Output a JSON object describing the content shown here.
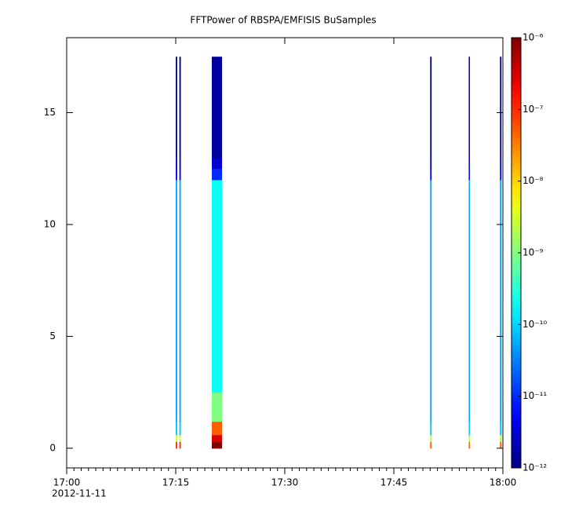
{
  "chart_data": {
    "type": "spectrogram",
    "title": "FFTPower of RBSPA/EMFISIS  BuSamples",
    "date_label": "2012-11-11",
    "xlim": [
      0,
      60
    ],
    "xticks": [
      {
        "value": 0,
        "label": "17:00"
      },
      {
        "value": 15,
        "label": "17:15"
      },
      {
        "value": 30,
        "label": "17:30"
      },
      {
        "value": 45,
        "label": "17:45"
      },
      {
        "value": 60,
        "label": "18:00"
      }
    ],
    "ylim": [
      -0.88,
      18.35
    ],
    "yticks": [
      0,
      5,
      10,
      15
    ],
    "clim": [
      1e-12,
      1e-06
    ],
    "cticks": [
      {
        "value": 1e-06,
        "label": "10⁻⁶"
      },
      {
        "value": 1e-07,
        "label": "10⁻⁷"
      },
      {
        "value": 1e-08,
        "label": "10⁻⁸"
      },
      {
        "value": 1e-09,
        "label": "10⁻⁹"
      },
      {
        "value": 1e-10,
        "label": "10⁻¹⁰"
      },
      {
        "value": 1e-11,
        "label": "10⁻¹¹"
      },
      {
        "value": 1e-12,
        "label": "10⁻¹²"
      }
    ],
    "clog": true,
    "bins": [
      0,
      0.3,
      0.6,
      1.2,
      2.5,
      12,
      12.5,
      13,
      17.5
    ],
    "columns": [
      {
        "x0": 15.0,
        "x1": 15.2,
        "values": [
          1e-07,
          3e-09,
          8e-11,
          5e-11,
          5e-11,
          5e-12,
          2e-12,
          1e-12
        ]
      },
      {
        "x0": 15.5,
        "x1": 15.7,
        "values": [
          1e-07,
          3e-09,
          8e-11,
          5e-11,
          5e-11,
          5e-12,
          2e-12,
          1e-12
        ]
      },
      {
        "x0": 19.96,
        "x1": 21.37,
        "values": [
          1e-06,
          3e-07,
          5e-08,
          1e-09,
          2e-10,
          1e-11,
          3e-12,
          1.5e-12
        ]
      },
      {
        "x0": 50.0,
        "x1": 50.2,
        "values": [
          5e-08,
          2e-09,
          8e-11,
          5e-11,
          5e-11,
          5e-12,
          2e-12,
          1e-12
        ]
      },
      {
        "x0": 55.3,
        "x1": 55.45,
        "values": [
          5e-08,
          2e-09,
          8e-11,
          5e-11,
          5e-11,
          5e-12,
          2e-12,
          1e-12
        ]
      },
      {
        "x0": 59.6,
        "x1": 59.8,
        "values": [
          5e-08,
          2e-09,
          8e-11,
          5e-11,
          5e-11,
          5e-12,
          2e-12,
          1e-12
        ]
      }
    ]
  }
}
